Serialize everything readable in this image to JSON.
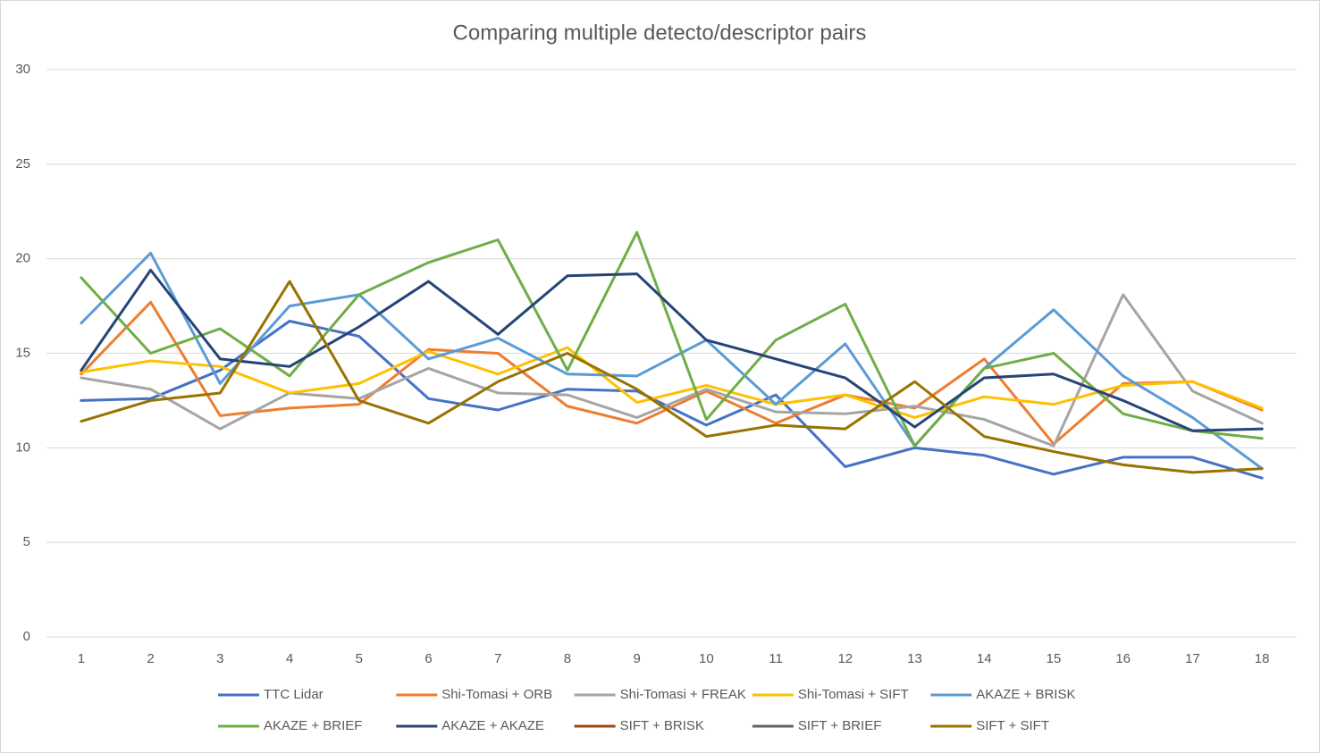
{
  "chart_data": {
    "type": "line",
    "title": "Comparing multiple detecto/descriptor pairs",
    "categories": [
      1,
      2,
      3,
      4,
      5,
      6,
      7,
      8,
      9,
      10,
      11,
      12,
      13,
      14,
      15,
      16,
      17,
      18
    ],
    "ylim": [
      0,
      30
    ],
    "yticks": [
      0,
      5,
      10,
      15,
      20,
      25,
      30
    ],
    "grid": true,
    "legend": "bottom",
    "series": [
      {
        "name": "TTC Lidar",
        "color": "#4472c4",
        "values": [
          12.5,
          12.6,
          14.1,
          16.7,
          15.9,
          12.6,
          12.0,
          13.1,
          13.0,
          11.2,
          12.8,
          9.0,
          10.0,
          9.6,
          8.6,
          9.5,
          9.5,
          8.4
        ]
      },
      {
        "name": "Shi-Tomasi + ORB",
        "color": "#ed7d31",
        "values": [
          13.9,
          17.7,
          11.7,
          12.1,
          12.3,
          15.2,
          15.0,
          12.2,
          11.3,
          13.0,
          11.3,
          12.8,
          12.1,
          14.7,
          10.2,
          13.4,
          13.5,
          12.0
        ]
      },
      {
        "name": "Shi-Tomasi + FREAK",
        "color": "#a5a5a5",
        "values": [
          13.7,
          13.1,
          11.0,
          12.9,
          12.6,
          14.2,
          12.9,
          12.8,
          11.6,
          13.1,
          11.9,
          11.8,
          12.2,
          11.5,
          10.1,
          18.1,
          13.0,
          11.3
        ]
      },
      {
        "name": "Shi-Tomasi + SIFT",
        "color": "#ffc000",
        "values": [
          14.0,
          14.6,
          14.3,
          12.9,
          13.4,
          15.1,
          13.9,
          15.3,
          12.4,
          13.3,
          12.3,
          12.8,
          11.6,
          12.7,
          12.3,
          13.3,
          13.5,
          12.1
        ]
      },
      {
        "name": "AKAZE + BRISK",
        "color": "#5b9bd5",
        "values": [
          16.6,
          20.3,
          13.4,
          17.5,
          18.1,
          14.7,
          15.8,
          13.9,
          13.8,
          15.7,
          12.3,
          15.5,
          10.1,
          14.2,
          17.3,
          13.8,
          11.6,
          8.9
        ]
      },
      {
        "name": "AKAZE + BRIEF",
        "color": "#70ad47",
        "values": [
          19.0,
          15.0,
          16.3,
          13.8,
          18.1,
          19.8,
          21.0,
          14.1,
          21.4,
          11.5,
          15.7,
          17.6,
          10.1,
          14.2,
          15.0,
          11.8,
          10.9,
          10.5
        ]
      },
      {
        "name": "AKAZE + AKAZE",
        "color": "#264478",
        "values": [
          14.1,
          19.4,
          14.7,
          14.3,
          16.4,
          18.8,
          16.0,
          19.1,
          19.2,
          15.7,
          14.7,
          13.7,
          11.1,
          13.7,
          13.9,
          12.5,
          10.9,
          11.0
        ]
      },
      {
        "name": "SIFT + BRISK",
        "color": "#9e480e",
        "values": [
          null,
          null,
          null,
          null,
          null,
          null,
          null,
          null,
          null,
          null,
          null,
          null,
          null,
          null,
          null,
          null,
          null,
          null
        ]
      },
      {
        "name": "SIFT + BRIEF",
        "color": "#636363",
        "values": [
          null,
          null,
          null,
          null,
          null,
          null,
          null,
          null,
          null,
          null,
          null,
          null,
          null,
          null,
          null,
          null,
          null,
          null
        ]
      },
      {
        "name": "SIFT + SIFT",
        "color": "#997300",
        "values": [
          11.4,
          12.5,
          12.9,
          18.8,
          12.5,
          11.3,
          13.5,
          15.0,
          13.1,
          10.6,
          11.2,
          11.0,
          13.5,
          10.6,
          9.8,
          9.1,
          8.7,
          8.9
        ]
      }
    ]
  }
}
